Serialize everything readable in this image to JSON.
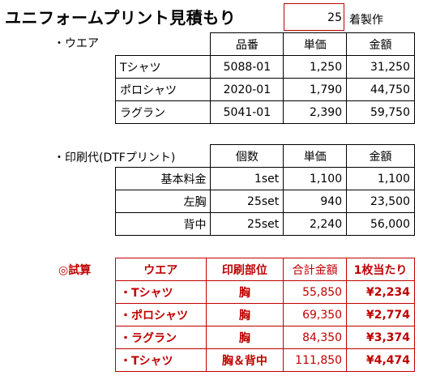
{
  "title": "ユニフォームプリント見積もり",
  "quantity": {
    "value": "25",
    "unit": "着製作"
  },
  "wear": {
    "label": "・ウエア",
    "headers": [
      "品番",
      "単価",
      "金額"
    ],
    "rows": [
      {
        "name": "Tシャツ",
        "code": "5088-01",
        "price": "1,250",
        "amount": "31,250"
      },
      {
        "name": "ポロシャツ",
        "code": "2020-01",
        "price": "1,790",
        "amount": "44,750"
      },
      {
        "name": "ラグラン",
        "code": "5041-01",
        "price": "2,390",
        "amount": "59,750"
      }
    ]
  },
  "print": {
    "label": "・印刷代(DTFプリント)",
    "headers": [
      "個数",
      "単価",
      "金額"
    ],
    "rows": [
      {
        "name": "基本料金",
        "qty": "1set",
        "price": "1,100",
        "amount": "1,100"
      },
      {
        "name": "左胸",
        "qty": "25set",
        "price": "940",
        "amount": "23,500"
      },
      {
        "name": "背中",
        "qty": "25set",
        "price": "2,240",
        "amount": "56,000"
      }
    ]
  },
  "estimate": {
    "label": "◎試算",
    "headers": [
      "ウエア",
      "印刷部位",
      "合計金額",
      "1枚当たり"
    ],
    "rows": [
      {
        "wear": "・Tシャツ",
        "position": "胸",
        "total": "55,850",
        "per_unit": "¥2,234"
      },
      {
        "wear": "・ポロシャツ",
        "position": "胸",
        "total": "69,350",
        "per_unit": "¥2,774"
      },
      {
        "wear": "・ラグラン",
        "position": "胸",
        "total": "84,350",
        "per_unit": "¥3,374"
      },
      {
        "wear": "・Tシャツ",
        "position": "胸＆背中",
        "total": "111,850",
        "per_unit": "¥4,474"
      }
    ]
  },
  "colors": {
    "accent": "#c00000",
    "text": "#000000",
    "background": "#ffffff"
  }
}
